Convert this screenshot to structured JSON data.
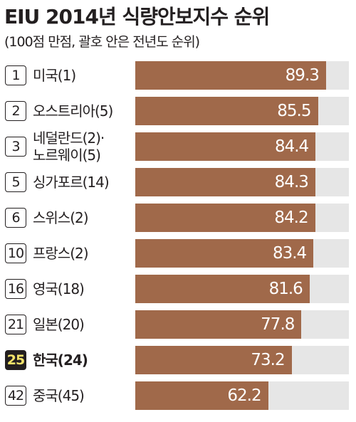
{
  "chart_data": {
    "type": "bar",
    "title": "EIU 2014년 식량안보지수 순위",
    "subtitle": "(100점 만점, 괄호 안은 전년도 순위)",
    "xlim": [
      0,
      100
    ],
    "grid": false,
    "legend": "none",
    "bar_color": "#a0694a",
    "track_color": "#e6e6e6",
    "highlight_color": "#f4e36a",
    "rows": [
      {
        "rank": "1",
        "lines": [
          "미국(1)"
        ],
        "value": 89.3,
        "value_label": "89.3",
        "highlight": false
      },
      {
        "rank": "2",
        "lines": [
          "오스트리아(5)"
        ],
        "value": 85.5,
        "value_label": "85.5",
        "highlight": false
      },
      {
        "rank": "3",
        "lines": [
          "네덜란드(2)·",
          "노르웨이(5)"
        ],
        "value": 84.4,
        "value_label": "84.4",
        "highlight": false
      },
      {
        "rank": "5",
        "lines": [
          "싱가포르(14)"
        ],
        "value": 84.3,
        "value_label": "84.3",
        "highlight": false
      },
      {
        "rank": "6",
        "lines": [
          "스위스(2)"
        ],
        "value": 84.2,
        "value_label": "84.2",
        "highlight": false
      },
      {
        "rank": "10",
        "lines": [
          "프랑스(2)"
        ],
        "value": 83.4,
        "value_label": "83.4",
        "highlight": false
      },
      {
        "rank": "16",
        "lines": [
          "영국(18)"
        ],
        "value": 81.6,
        "value_label": "81.6",
        "highlight": false
      },
      {
        "rank": "21",
        "lines": [
          "일본(20)"
        ],
        "value": 77.8,
        "value_label": "77.8",
        "highlight": false
      },
      {
        "rank": "25",
        "lines": [
          "한국(24)"
        ],
        "value": 73.2,
        "value_label": "73.2",
        "highlight": true
      },
      {
        "rank": "42",
        "lines": [
          "중국(45)"
        ],
        "value": 62.2,
        "value_label": "62.2",
        "highlight": false
      }
    ]
  }
}
